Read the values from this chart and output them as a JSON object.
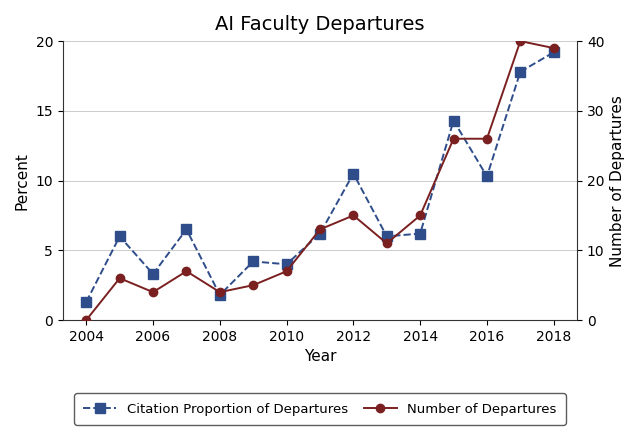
{
  "title": "AI Faculty Departures",
  "xlabel": "Year",
  "ylabel_left": "Percent",
  "ylabel_right": "Number of Departures",
  "years": [
    2004,
    2005,
    2006,
    2007,
    2008,
    2009,
    2010,
    2011,
    2012,
    2013,
    2014,
    2015,
    2016,
    2017,
    2018
  ],
  "citation_proportion": [
    1.3,
    6.0,
    3.3,
    6.5,
    1.8,
    4.2,
    4.0,
    6.2,
    10.5,
    6.0,
    6.2,
    14.3,
    10.3,
    17.8,
    19.2
  ],
  "num_departures_raw": [
    0,
    6,
    4,
    7,
    4,
    5,
    7,
    13,
    15,
    11,
    15,
    26,
    26,
    40,
    39
  ],
  "ylim_left": [
    0,
    20
  ],
  "ylim_right": [
    0,
    40
  ],
  "yticks_left": [
    0,
    5,
    10,
    15,
    20
  ],
  "yticks_right": [
    0,
    10,
    20,
    30,
    40
  ],
  "xticks": [
    2004,
    2006,
    2008,
    2010,
    2012,
    2014,
    2016,
    2018
  ],
  "citation_color": "#2e4d8a",
  "departure_color": "#7b2020",
  "background_color": "#ffffff",
  "plot_bg_color": "#ffffff",
  "grid_color": "#cccccc",
  "legend_label_citation": "Citation Proportion of Departures",
  "legend_label_departure": "Number of Departures",
  "title_fontsize": 14,
  "axis_fontsize": 11,
  "tick_fontsize": 10
}
